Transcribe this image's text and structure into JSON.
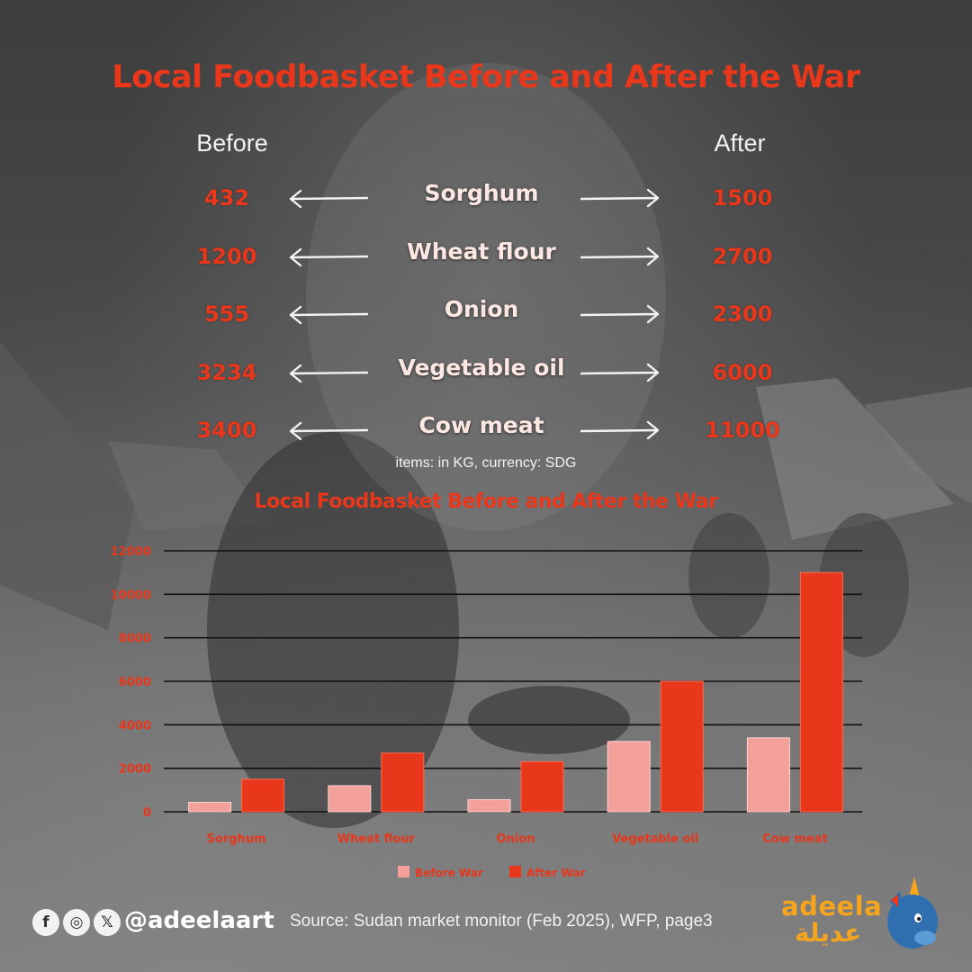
{
  "header": {
    "title": "Local Foodbasket Before and After the War",
    "before_label": "Before",
    "after_label": "After",
    "accent": "#e8371b"
  },
  "rows": [
    {
      "item": "Sorghum",
      "before": "432",
      "after": "1500"
    },
    {
      "item": "Wheat flour",
      "before": "1200",
      "after": "2700"
    },
    {
      "item": "Onion",
      "before": "555",
      "after": "2300"
    },
    {
      "item": "Vegetable oil",
      "before": "3234",
      "after": "6000"
    },
    {
      "item": "Cow meat",
      "before": "3400",
      "after": "11000"
    }
  ],
  "units_note": "items: in KG, currency: SDG",
  "chart_data": {
    "type": "bar",
    "title": "Local Foodbasket Before and After the War",
    "categories": [
      "Sorghum",
      "Wheat flour",
      "Onion",
      "Vegetable oil",
      "Cow meat"
    ],
    "series": [
      {
        "name": "Before War",
        "values": [
          432,
          1200,
          555,
          3234,
          3400
        ],
        "color": "#f4a09a"
      },
      {
        "name": "After War",
        "values": [
          1500,
          2700,
          2300,
          6000,
          11000
        ],
        "color": "#e8371b"
      }
    ],
    "y_ticks": [
      "0",
      "2000",
      "4000",
      "6000",
      "8000",
      "10000",
      "12000"
    ],
    "ylim": [
      0,
      12000
    ],
    "grid": true,
    "legend_position": "bottom-center",
    "xlabel": "",
    "ylabel": ""
  },
  "footer": {
    "social_icons": [
      "facebook-icon",
      "instagram-icon",
      "x-icon"
    ],
    "handle": "@adeelaart",
    "source": "Source: Sudan market monitor (Feb 2025), WFP, page3",
    "brand_latin": "adeela",
    "brand_arabic": "عديلة",
    "brand_color": "#f5a41d"
  }
}
